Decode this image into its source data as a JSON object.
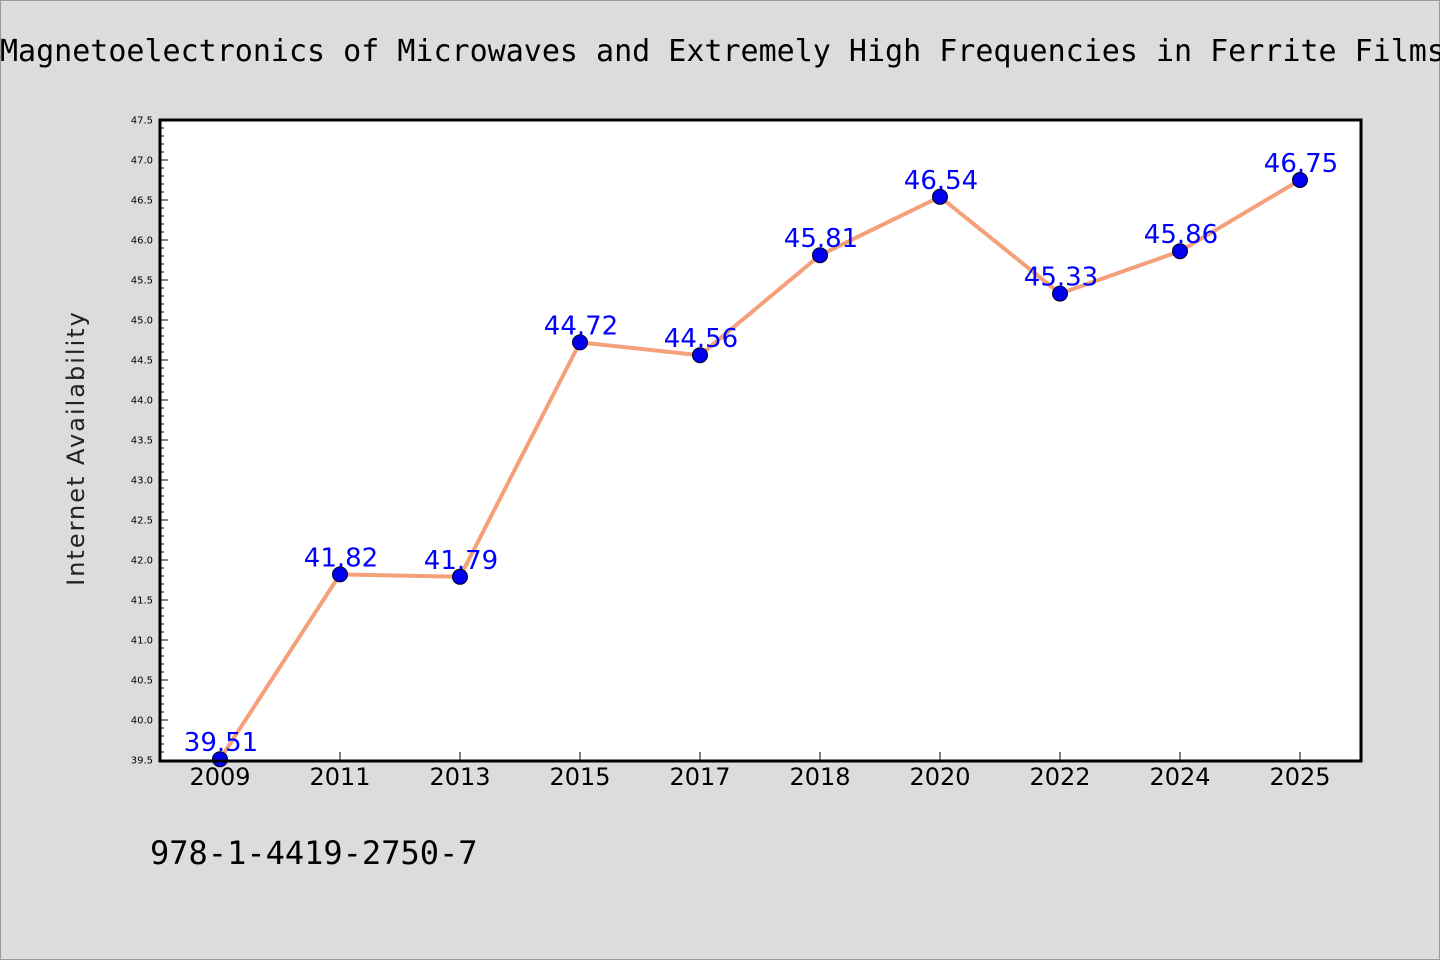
{
  "title": "Magnetoelectronics of Microwaves and Extremely High Frequencies in Ferrite Films",
  "footer_text": "978-1-4419-2750-7",
  "chart_data": {
    "type": "line",
    "categories": [
      "2009",
      "2011",
      "2013",
      "2015",
      "2017",
      "2018",
      "2020",
      "2022",
      "2024",
      "2025"
    ],
    "series": [
      {
        "values": [
          39.51,
          41.82,
          41.79,
          44.72,
          44.56,
          45.81,
          46.54,
          45.33,
          45.86,
          46.75
        ],
        "line_color": "#f4a07a",
        "marker_color": "#0000ee"
      }
    ],
    "xlabel": "",
    "ylabel": "Internet Availability",
    "ylim": [
      39.5,
      47.5
    ],
    "yticks": [
      "39.5",
      "40.0",
      "40.5",
      "41.0",
      "41.5",
      "42.0",
      "42.5",
      "43.0",
      "43.5",
      "44.0",
      "44.5",
      "45.0",
      "45.5",
      "46.0",
      "46.5",
      "47.0",
      "47.5"
    ],
    "data_labels": [
      "39.51",
      "41.82",
      "41.79",
      "44.72",
      "44.56",
      "45.81",
      "46.54",
      "45.33",
      "45.86",
      "46.75"
    ],
    "label_color": "#0000ff",
    "grid": false,
    "legend": "none"
  }
}
